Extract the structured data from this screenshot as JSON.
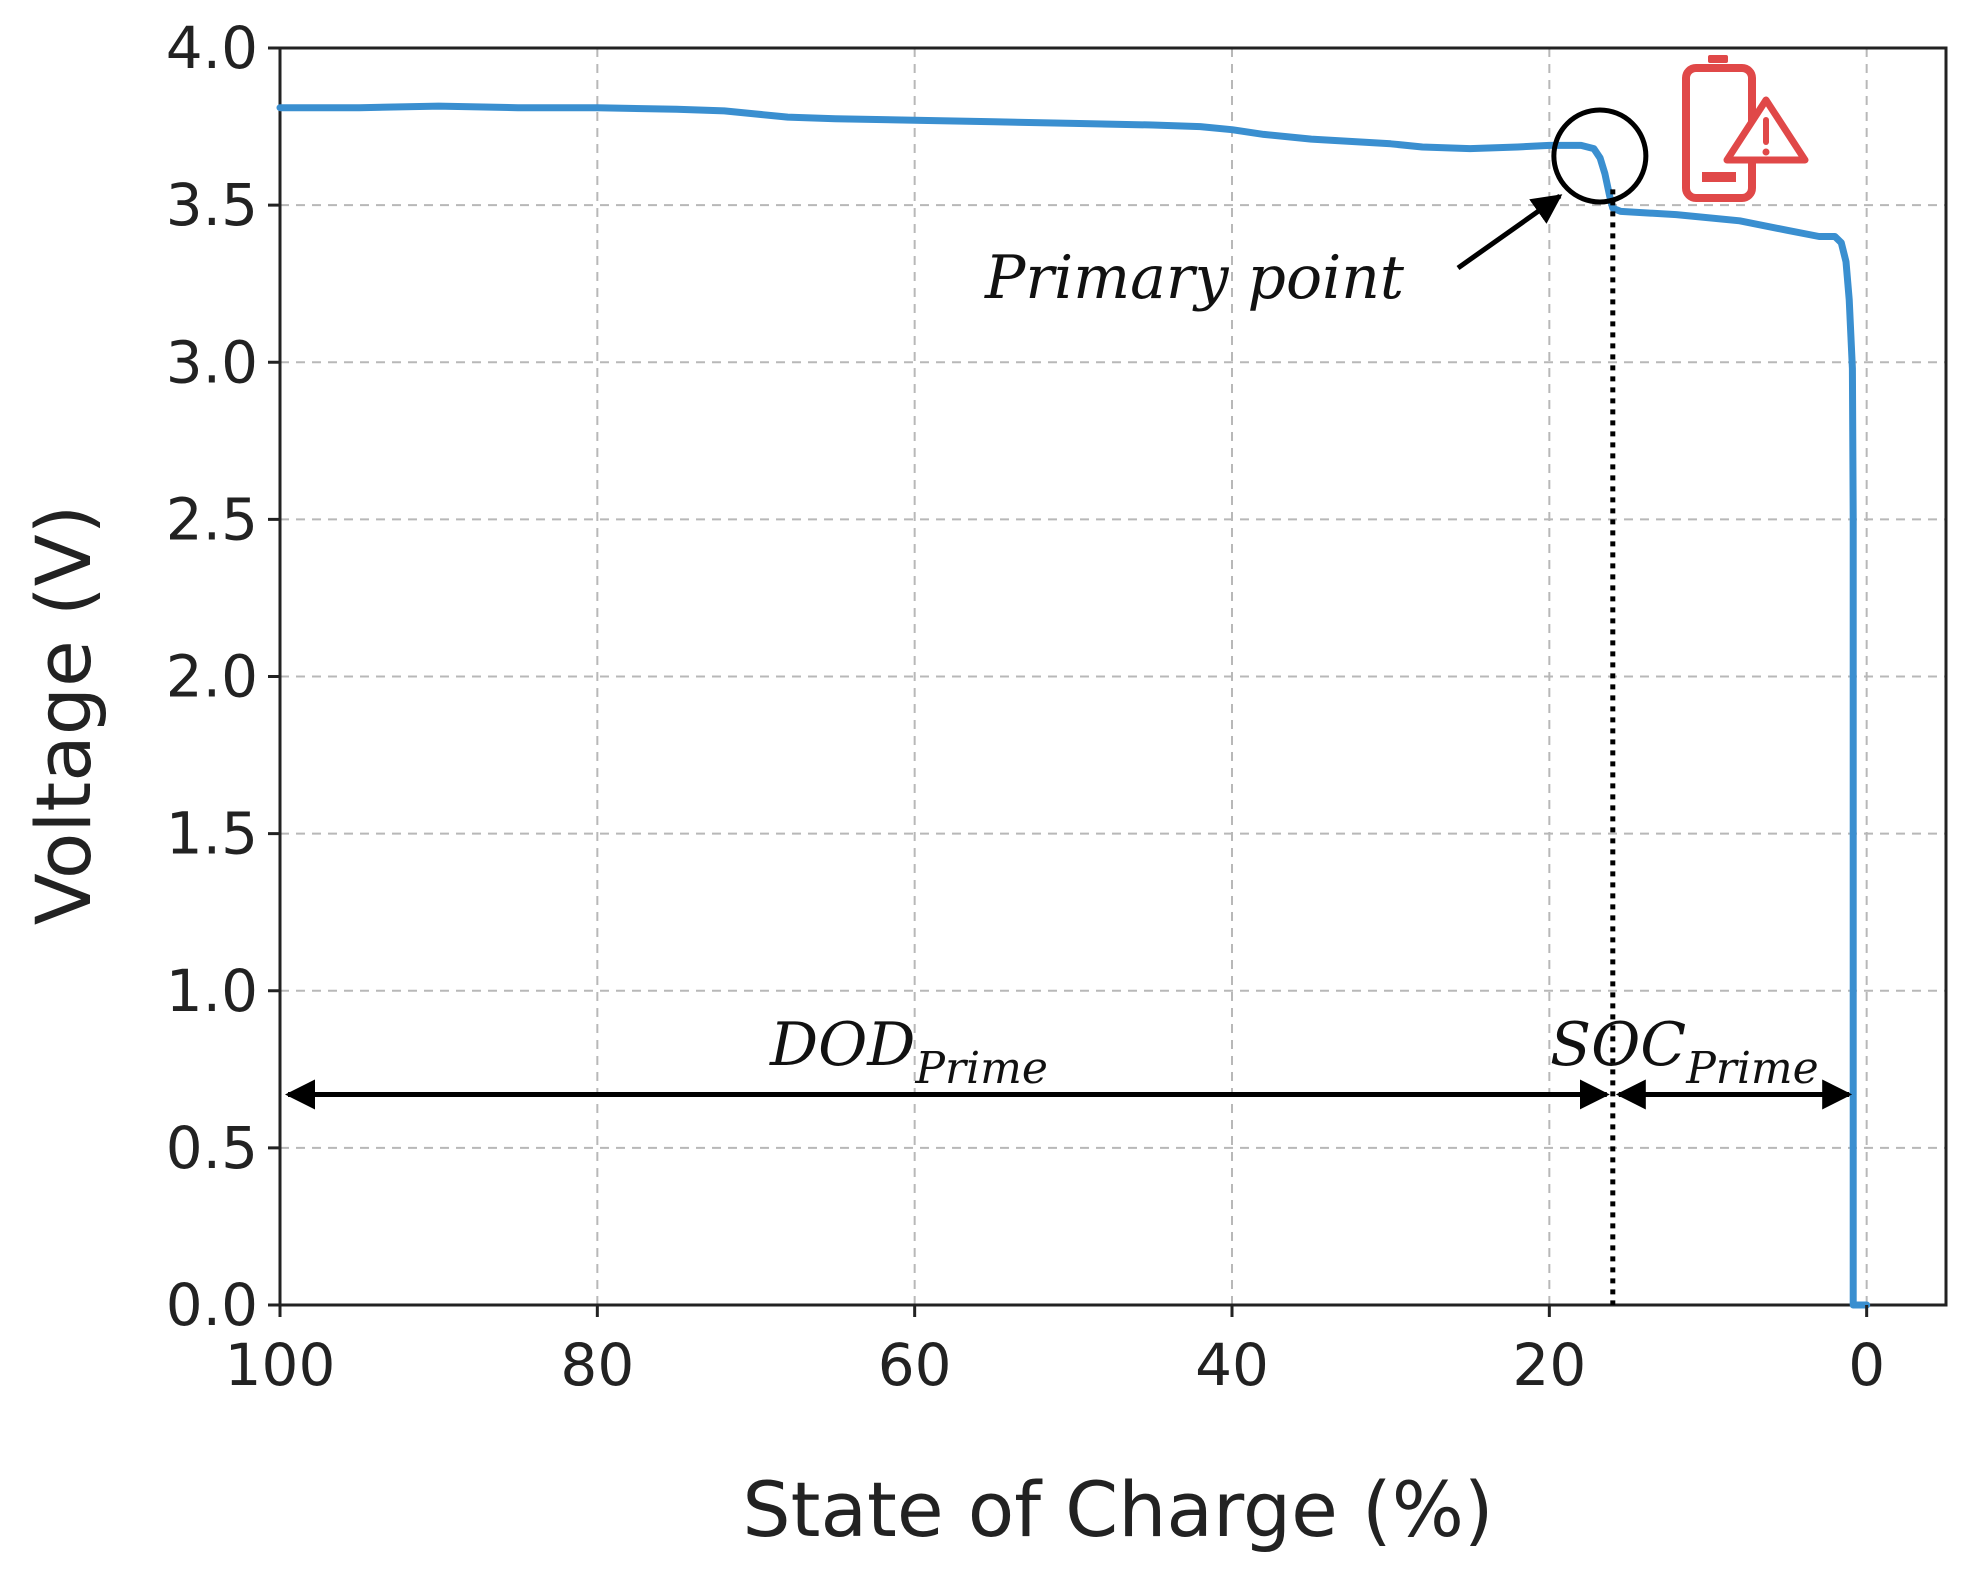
{
  "chart_data": {
    "type": "line",
    "title": "",
    "xlabel": "State of Charge (%)",
    "ylabel": "Voltage (V)",
    "xlim": [
      100,
      -5
    ],
    "ylim": [
      0.0,
      4.0
    ],
    "x_reversed": true,
    "grid": true,
    "x_ticks": [
      100,
      80,
      60,
      40,
      20,
      0
    ],
    "x_tick_labels": [
      "100",
      "80",
      "60",
      "40",
      "20",
      "0"
    ],
    "y_ticks": [
      0.0,
      0.5,
      1.0,
      1.5,
      2.0,
      2.5,
      3.0,
      3.5,
      4.0
    ],
    "y_tick_labels": [
      "0.0",
      "0.5",
      "1.0",
      "1.5",
      "2.0",
      "2.5",
      "3.0",
      "3.5",
      "4.0"
    ],
    "series": [
      {
        "color": "#3a8fd0",
        "points": [
          [
            100,
            3.81
          ],
          [
            95,
            3.81
          ],
          [
            90,
            3.815
          ],
          [
            85,
            3.81
          ],
          [
            80,
            3.81
          ],
          [
            75,
            3.805
          ],
          [
            72,
            3.8
          ],
          [
            70,
            3.79
          ],
          [
            68,
            3.78
          ],
          [
            65,
            3.775
          ],
          [
            60,
            3.77
          ],
          [
            55,
            3.765
          ],
          [
            50,
            3.76
          ],
          [
            45,
            3.755
          ],
          [
            42,
            3.75
          ],
          [
            40,
            3.74
          ],
          [
            38,
            3.725
          ],
          [
            35,
            3.71
          ],
          [
            30,
            3.695
          ],
          [
            28,
            3.685
          ],
          [
            25,
            3.68
          ],
          [
            22,
            3.685
          ],
          [
            20,
            3.69
          ],
          [
            18,
            3.69
          ],
          [
            17.2,
            3.68
          ],
          [
            16.8,
            3.65
          ],
          [
            16.5,
            3.6
          ],
          [
            16.2,
            3.53
          ],
          [
            16.0,
            3.49
          ],
          [
            15.5,
            3.48
          ],
          [
            12,
            3.47
          ],
          [
            8,
            3.45
          ],
          [
            5,
            3.42
          ],
          [
            3,
            3.4
          ],
          [
            2,
            3.4
          ],
          [
            1.6,
            3.38
          ],
          [
            1.3,
            3.32
          ],
          [
            1.1,
            3.2
          ],
          [
            0.9,
            2.98
          ],
          [
            0.85,
            2.5
          ],
          [
            0.85,
            1.5
          ],
          [
            0.85,
            0.5
          ],
          [
            0.85,
            0.0
          ],
          [
            0.0,
            0.0
          ]
        ]
      }
    ],
    "primary_point": {
      "x": 16.5,
      "y": 3.65,
      "label": "Primary point"
    },
    "soc_prime_x": 16,
    "arrow_y": 0.67,
    "dod_label": {
      "main": "DOD",
      "sub": "Prime"
    },
    "soc_label": {
      "main": "SOC",
      "sub": "Prime"
    }
  },
  "colors": {
    "line": "#3a8fd0",
    "icon": "#e04848"
  },
  "icon": "battery-warning-icon"
}
